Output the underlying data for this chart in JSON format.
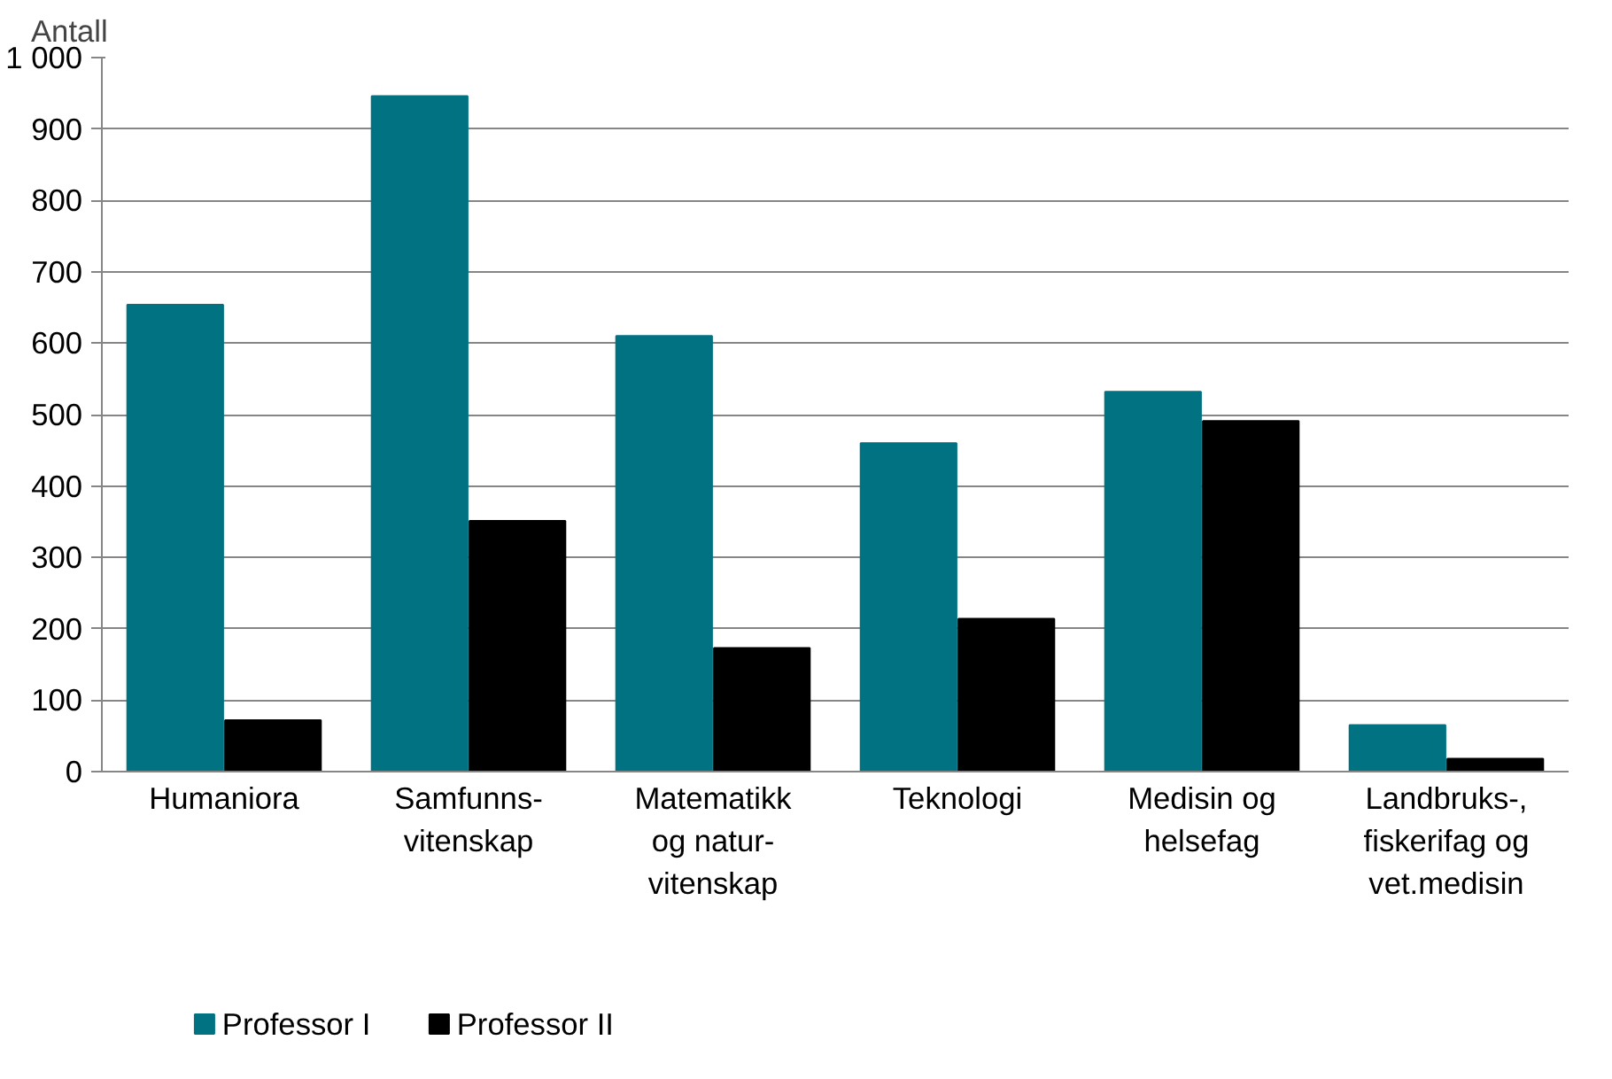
{
  "chart_data": {
    "type": "bar",
    "ylabel": "Antall",
    "categories": [
      "Humaniora",
      "Samfunns-\nvitenskap",
      "Matematikk\nog natur-\nvitenskap",
      "Teknologi",
      "Medisin og\nhelsefag",
      "Landbruks-,\nfiskerifag og\nvet.medisin"
    ],
    "series": [
      {
        "name": "Professor I",
        "color": "#007282",
        "values": [
          654,
          946,
          610,
          460,
          532,
          65
        ]
      },
      {
        "name": "Professor II",
        "color": "#000000",
        "values": [
          72,
          351,
          173,
          214,
          491,
          18
        ]
      }
    ],
    "ylim": [
      0,
      1000
    ],
    "yticks": [
      0,
      100,
      200,
      300,
      400,
      500,
      600,
      700,
      800,
      {
        "value": 900,
        "label": "900"
      },
      {
        "value": 1000,
        "label": "1 000"
      }
    ],
    "grid": "y",
    "legend": "bottom"
  }
}
